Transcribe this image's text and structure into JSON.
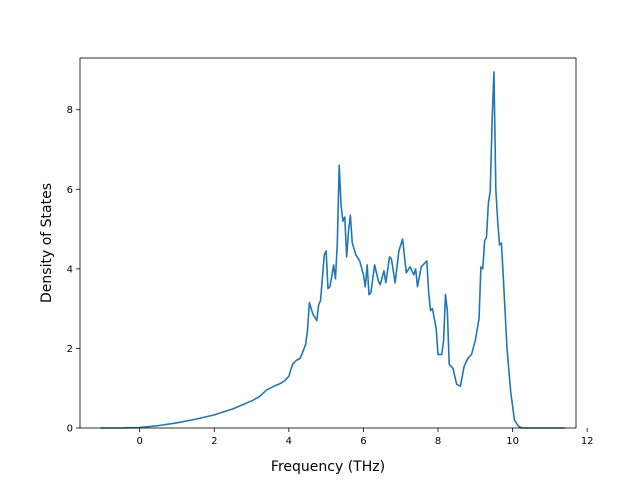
{
  "chart_data": {
    "type": "line",
    "title": "",
    "xlabel": "Frequency (THz)",
    "ylabel": "Density of States",
    "xlim": [
      -1.6,
      11.7
    ],
    "ylim": [
      0,
      9.3
    ],
    "xticks": [
      0,
      2,
      4,
      6,
      8,
      10,
      12
    ],
    "yticks": [
      0,
      2,
      4,
      6,
      8
    ],
    "grid": false,
    "legend": "none",
    "line_color": "#1f77b4",
    "series": [
      {
        "x": [
          -1.05,
          -0.5,
          0,
          0.5,
          1.0,
          1.5,
          2.0,
          2.5,
          3.0,
          3.2,
          3.4,
          3.6,
          3.8,
          3.9,
          4.0,
          4.1,
          4.2,
          4.3,
          4.35,
          4.45,
          4.5,
          4.55,
          4.65,
          4.75,
          4.8,
          4.85,
          4.95,
          5.0,
          5.05,
          5.1,
          5.15,
          5.2,
          5.25,
          5.3,
          5.35,
          5.4,
          5.45,
          5.5,
          5.55,
          5.6,
          5.65,
          5.7,
          5.8,
          5.9,
          6.0,
          6.05,
          6.1,
          6.15,
          6.2,
          6.3,
          6.4,
          6.45,
          6.55,
          6.6,
          6.7,
          6.75,
          6.85,
          6.95,
          7.05,
          7.15,
          7.25,
          7.35,
          7.4,
          7.45,
          7.55,
          7.6,
          7.7,
          7.75,
          7.8,
          7.85,
          7.95,
          8.0,
          8.05,
          8.1,
          8.15,
          8.2,
          8.25,
          8.3,
          8.4,
          8.5,
          8.6,
          8.7,
          8.8,
          8.9,
          9.0,
          9.1,
          9.15,
          9.2,
          9.25,
          9.3,
          9.35,
          9.4,
          9.45,
          9.5,
          9.55,
          9.6,
          9.65,
          9.7,
          9.75,
          9.8,
          9.85,
          9.95,
          10.05,
          10.15,
          10.25,
          10.3,
          10.4,
          10.5,
          10.7,
          11.0,
          11.4
        ],
        "y": [
          0,
          0,
          0.01,
          0.06,
          0.13,
          0.22,
          0.33,
          0.48,
          0.68,
          0.78,
          0.95,
          1.05,
          1.13,
          1.2,
          1.3,
          1.6,
          1.7,
          1.75,
          1.85,
          2.1,
          2.45,
          3.15,
          2.85,
          2.7,
          3.1,
          3.2,
          4.35,
          4.45,
          3.5,
          3.55,
          3.8,
          4.1,
          3.75,
          4.65,
          6.6,
          5.6,
          5.2,
          5.3,
          4.3,
          4.95,
          5.35,
          4.65,
          4.35,
          4.2,
          3.85,
          3.55,
          4.1,
          3.35,
          3.4,
          4.1,
          3.7,
          3.6,
          3.95,
          3.65,
          4.3,
          4.25,
          3.65,
          4.45,
          4.75,
          3.9,
          4.05,
          3.85,
          4.0,
          3.55,
          4.05,
          4.1,
          4.2,
          3.4,
          2.95,
          3.0,
          2.5,
          1.85,
          1.85,
          1.85,
          2.2,
          3.35,
          2.95,
          1.6,
          1.5,
          1.1,
          1.05,
          1.55,
          1.75,
          1.85,
          2.2,
          2.75,
          4.05,
          4.0,
          4.7,
          4.8,
          5.65,
          5.95,
          7.7,
          8.95,
          6.0,
          5.2,
          4.6,
          4.65,
          3.8,
          2.9,
          2.0,
          0.9,
          0.2,
          0.05,
          0.0,
          0.0,
          0.0,
          0.0,
          0.0,
          0.0,
          0.0
        ]
      }
    ]
  }
}
